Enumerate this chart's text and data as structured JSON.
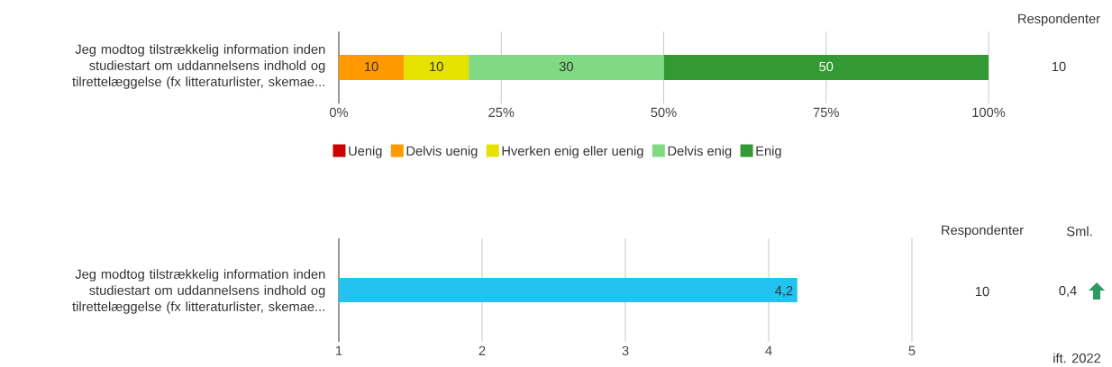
{
  "chart_data": [
    {
      "type": "bar",
      "orientation": "horizontal",
      "stacked": true,
      "categories": [
        "Jeg modtog tilstrækkelig information inden studiestart om uddannelsens indhold og tilrettelæggelse (fx litteraturlister, skemae..."
      ],
      "series": [
        {
          "name": "Uenig",
          "color": "#cc0000",
          "values": [
            0
          ],
          "value_labels": [
            null
          ]
        },
        {
          "name": "Delvis uenig",
          "color": "#ff9900",
          "values": [
            10
          ],
          "value_labels": [
            "10"
          ]
        },
        {
          "name": "Hverken enig eller uenig",
          "color": "#e6e200",
          "values": [
            10
          ],
          "value_labels": [
            "10"
          ]
        },
        {
          "name": "Delvis enig",
          "color": "#80d983",
          "values": [
            30
          ],
          "value_labels": [
            "30"
          ]
        },
        {
          "name": "Enig",
          "color": "#339933",
          "values": [
            50
          ],
          "value_labels": [
            "50"
          ]
        }
      ],
      "xlim": [
        0,
        100
      ],
      "xticks": [
        {
          "value": 0,
          "label": "0%"
        },
        {
          "value": 25,
          "label": "25%"
        },
        {
          "value": 50,
          "label": "50%"
        },
        {
          "value": 75,
          "label": "75%"
        },
        {
          "value": 100,
          "label": "100%"
        }
      ],
      "grid": "x",
      "legend": "bottom",
      "annotations": [
        "Respondenter",
        "10"
      ]
    },
    {
      "type": "bar",
      "orientation": "horizontal",
      "categories": [
        "Jeg modtog tilstrækkelig information inden studiestart om uddannelsens indhold og tilrettelæggelse (fx litteraturlister, skemae..."
      ],
      "values": [
        4.2
      ],
      "value_labels": [
        "4,2"
      ],
      "color": "#22c3f0",
      "xlim": [
        1,
        5
      ],
      "xticks": [
        1,
        2,
        3,
        4,
        5
      ],
      "grid": "x",
      "annotations": [
        "Respondenter",
        "Sml.",
        "10",
        "0,4",
        "ift. 2022"
      ]
    }
  ]
}
